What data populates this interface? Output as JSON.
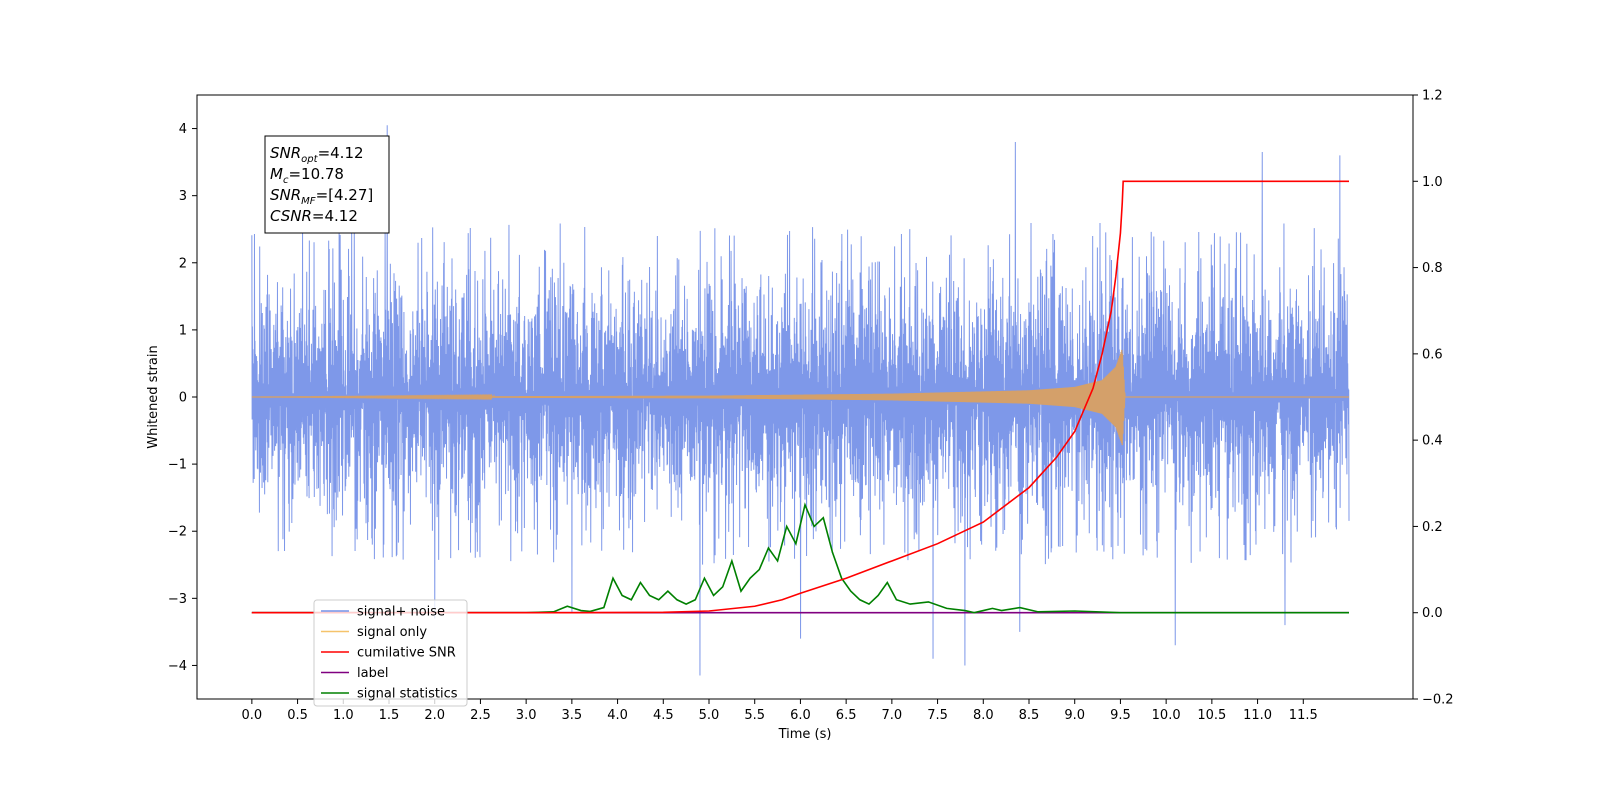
{
  "chart_data": {
    "type": "line",
    "xlabel": "Time (s)",
    "ylabel": "Whitened strain",
    "xlim": [
      -0.6,
      12.7
    ],
    "ylim": [
      -4.5,
      4.5
    ],
    "ylim_right": [
      -0.2,
      1.2
    ],
    "x_ticks": [
      "0.0",
      "0.5",
      "1.0",
      "1.5",
      "2.0",
      "2.5",
      "3.0",
      "3.5",
      "4.0",
      "4.5",
      "5.0",
      "5.5",
      "6.0",
      "6.5",
      "7.0",
      "7.5",
      "8.0",
      "8.5",
      "9.0",
      "9.5",
      "10.0",
      "10.5",
      "11.0",
      "11.5"
    ],
    "y_ticks_left": [
      "4",
      "3",
      "2",
      "1",
      "0",
      "−1",
      "−2",
      "−3",
      "−4"
    ],
    "y_ticks_right": [
      "1.2",
      "1.0",
      "0.8",
      "0.6",
      "0.4",
      "0.2",
      "0.0",
      "−0.2"
    ],
    "annotation": {
      "lines": [
        {
          "base": "SNR",
          "sub": "opt",
          "value": "=4.12"
        },
        {
          "base": "M",
          "sub": "c",
          "value": "=10.78"
        },
        {
          "base": "SNR",
          "sub": "MF",
          "value": "=[4.27]"
        },
        {
          "base": "CSNR",
          "sub": "",
          "value": "=4.12"
        }
      ]
    },
    "legend": {
      "placement": "lower-left",
      "entries": [
        {
          "label": "signal+ noise",
          "color": "#7792e8"
        },
        {
          "label": "signal only",
          "color": "#f5c36b"
        },
        {
          "label": "cumilative SNR",
          "color": "#ff0000"
        },
        {
          "label": "label",
          "color": "#800080"
        },
        {
          "label": "signal statistics",
          "color": "#008000"
        }
      ]
    },
    "series": [
      {
        "name": "signal+ noise",
        "axis": "left",
        "color": "#7792e8",
        "x_range": [
          0.0,
          12.0
        ],
        "band": {
          "core": [
            -1.6,
            1.6
          ],
          "typical_peak": [
            -2.5,
            2.6
          ]
        },
        "extremes": [
          {
            "x": 1.48,
            "y": 4.05
          },
          {
            "x": 8.35,
            "y": 3.8
          },
          {
            "x": 11.05,
            "y": 3.65
          },
          {
            "x": 11.9,
            "y": 3.6
          },
          {
            "x": 4.9,
            "y": -4.15
          },
          {
            "x": 7.8,
            "y": -4.0
          },
          {
            "x": 7.45,
            "y": -3.9
          },
          {
            "x": 10.1,
            "y": -3.7
          },
          {
            "x": 6.0,
            "y": -3.6
          },
          {
            "x": 8.4,
            "y": -3.5
          },
          {
            "x": 11.3,
            "y": -3.4
          },
          {
            "x": 2.0,
            "y": -3.3
          },
          {
            "x": 3.5,
            "y": -3.2
          }
        ]
      },
      {
        "name": "signal only",
        "axis": "left",
        "color": "#d4a06a",
        "chirp_envelope": [
          {
            "x": 0.0,
            "y": 0.0
          },
          {
            "x": 5.0,
            "y": 0.02
          },
          {
            "x": 7.0,
            "y": 0.05
          },
          {
            "x": 8.5,
            "y": 0.1
          },
          {
            "x": 9.0,
            "y": 0.15
          },
          {
            "x": 9.3,
            "y": 0.25
          },
          {
            "x": 9.45,
            "y": 0.45
          },
          {
            "x": 9.52,
            "y": 0.72
          },
          {
            "x": 9.55,
            "y": 0.0
          },
          {
            "x": 12.0,
            "y": 0.0
          }
        ]
      },
      {
        "name": "cumilative SNR",
        "axis": "right",
        "color": "#ff0000",
        "x": [
          0,
          3.5,
          4.5,
          5.0,
          5.5,
          5.8,
          6.0,
          6.5,
          7.0,
          7.5,
          8.0,
          8.5,
          8.8,
          9.0,
          9.2,
          9.3,
          9.4,
          9.45,
          9.5,
          9.52,
          9.53,
          12.0
        ],
        "values": [
          0,
          0,
          0.001,
          0.004,
          0.015,
          0.03,
          0.045,
          0.08,
          0.12,
          0.16,
          0.21,
          0.29,
          0.36,
          0.42,
          0.52,
          0.6,
          0.7,
          0.78,
          0.88,
          0.95,
          1.0,
          1.0
        ]
      },
      {
        "name": "label",
        "axis": "right",
        "color": "#800080",
        "x": [
          0,
          12.0
        ],
        "values": [
          0,
          0
        ]
      },
      {
        "name": "signal statistics",
        "axis": "right",
        "color": "#008000",
        "x": [
          0,
          3.0,
          3.3,
          3.45,
          3.6,
          3.7,
          3.85,
          3.95,
          4.05,
          4.15,
          4.25,
          4.35,
          4.45,
          4.55,
          4.65,
          4.75,
          4.85,
          4.95,
          5.05,
          5.15,
          5.25,
          5.35,
          5.45,
          5.55,
          5.65,
          5.75,
          5.85,
          5.95,
          6.05,
          6.15,
          6.25,
          6.35,
          6.45,
          6.55,
          6.65,
          6.75,
          6.85,
          6.95,
          7.05,
          7.2,
          7.4,
          7.6,
          7.8,
          7.9,
          8.0,
          8.1,
          8.2,
          8.4,
          8.6,
          9.0,
          9.5,
          12.0
        ],
        "values": [
          0,
          0,
          0.002,
          0.015,
          0.005,
          0.003,
          0.012,
          0.08,
          0.04,
          0.03,
          0.07,
          0.04,
          0.03,
          0.05,
          0.03,
          0.02,
          0.03,
          0.08,
          0.04,
          0.06,
          0.12,
          0.05,
          0.08,
          0.1,
          0.15,
          0.12,
          0.2,
          0.16,
          0.25,
          0.2,
          0.22,
          0.14,
          0.08,
          0.05,
          0.03,
          0.02,
          0.04,
          0.07,
          0.03,
          0.02,
          0.025,
          0.01,
          0.005,
          0.0,
          0.005,
          0.01,
          0.005,
          0.012,
          0.002,
          0.004,
          0.0,
          0.0
        ]
      }
    ]
  }
}
